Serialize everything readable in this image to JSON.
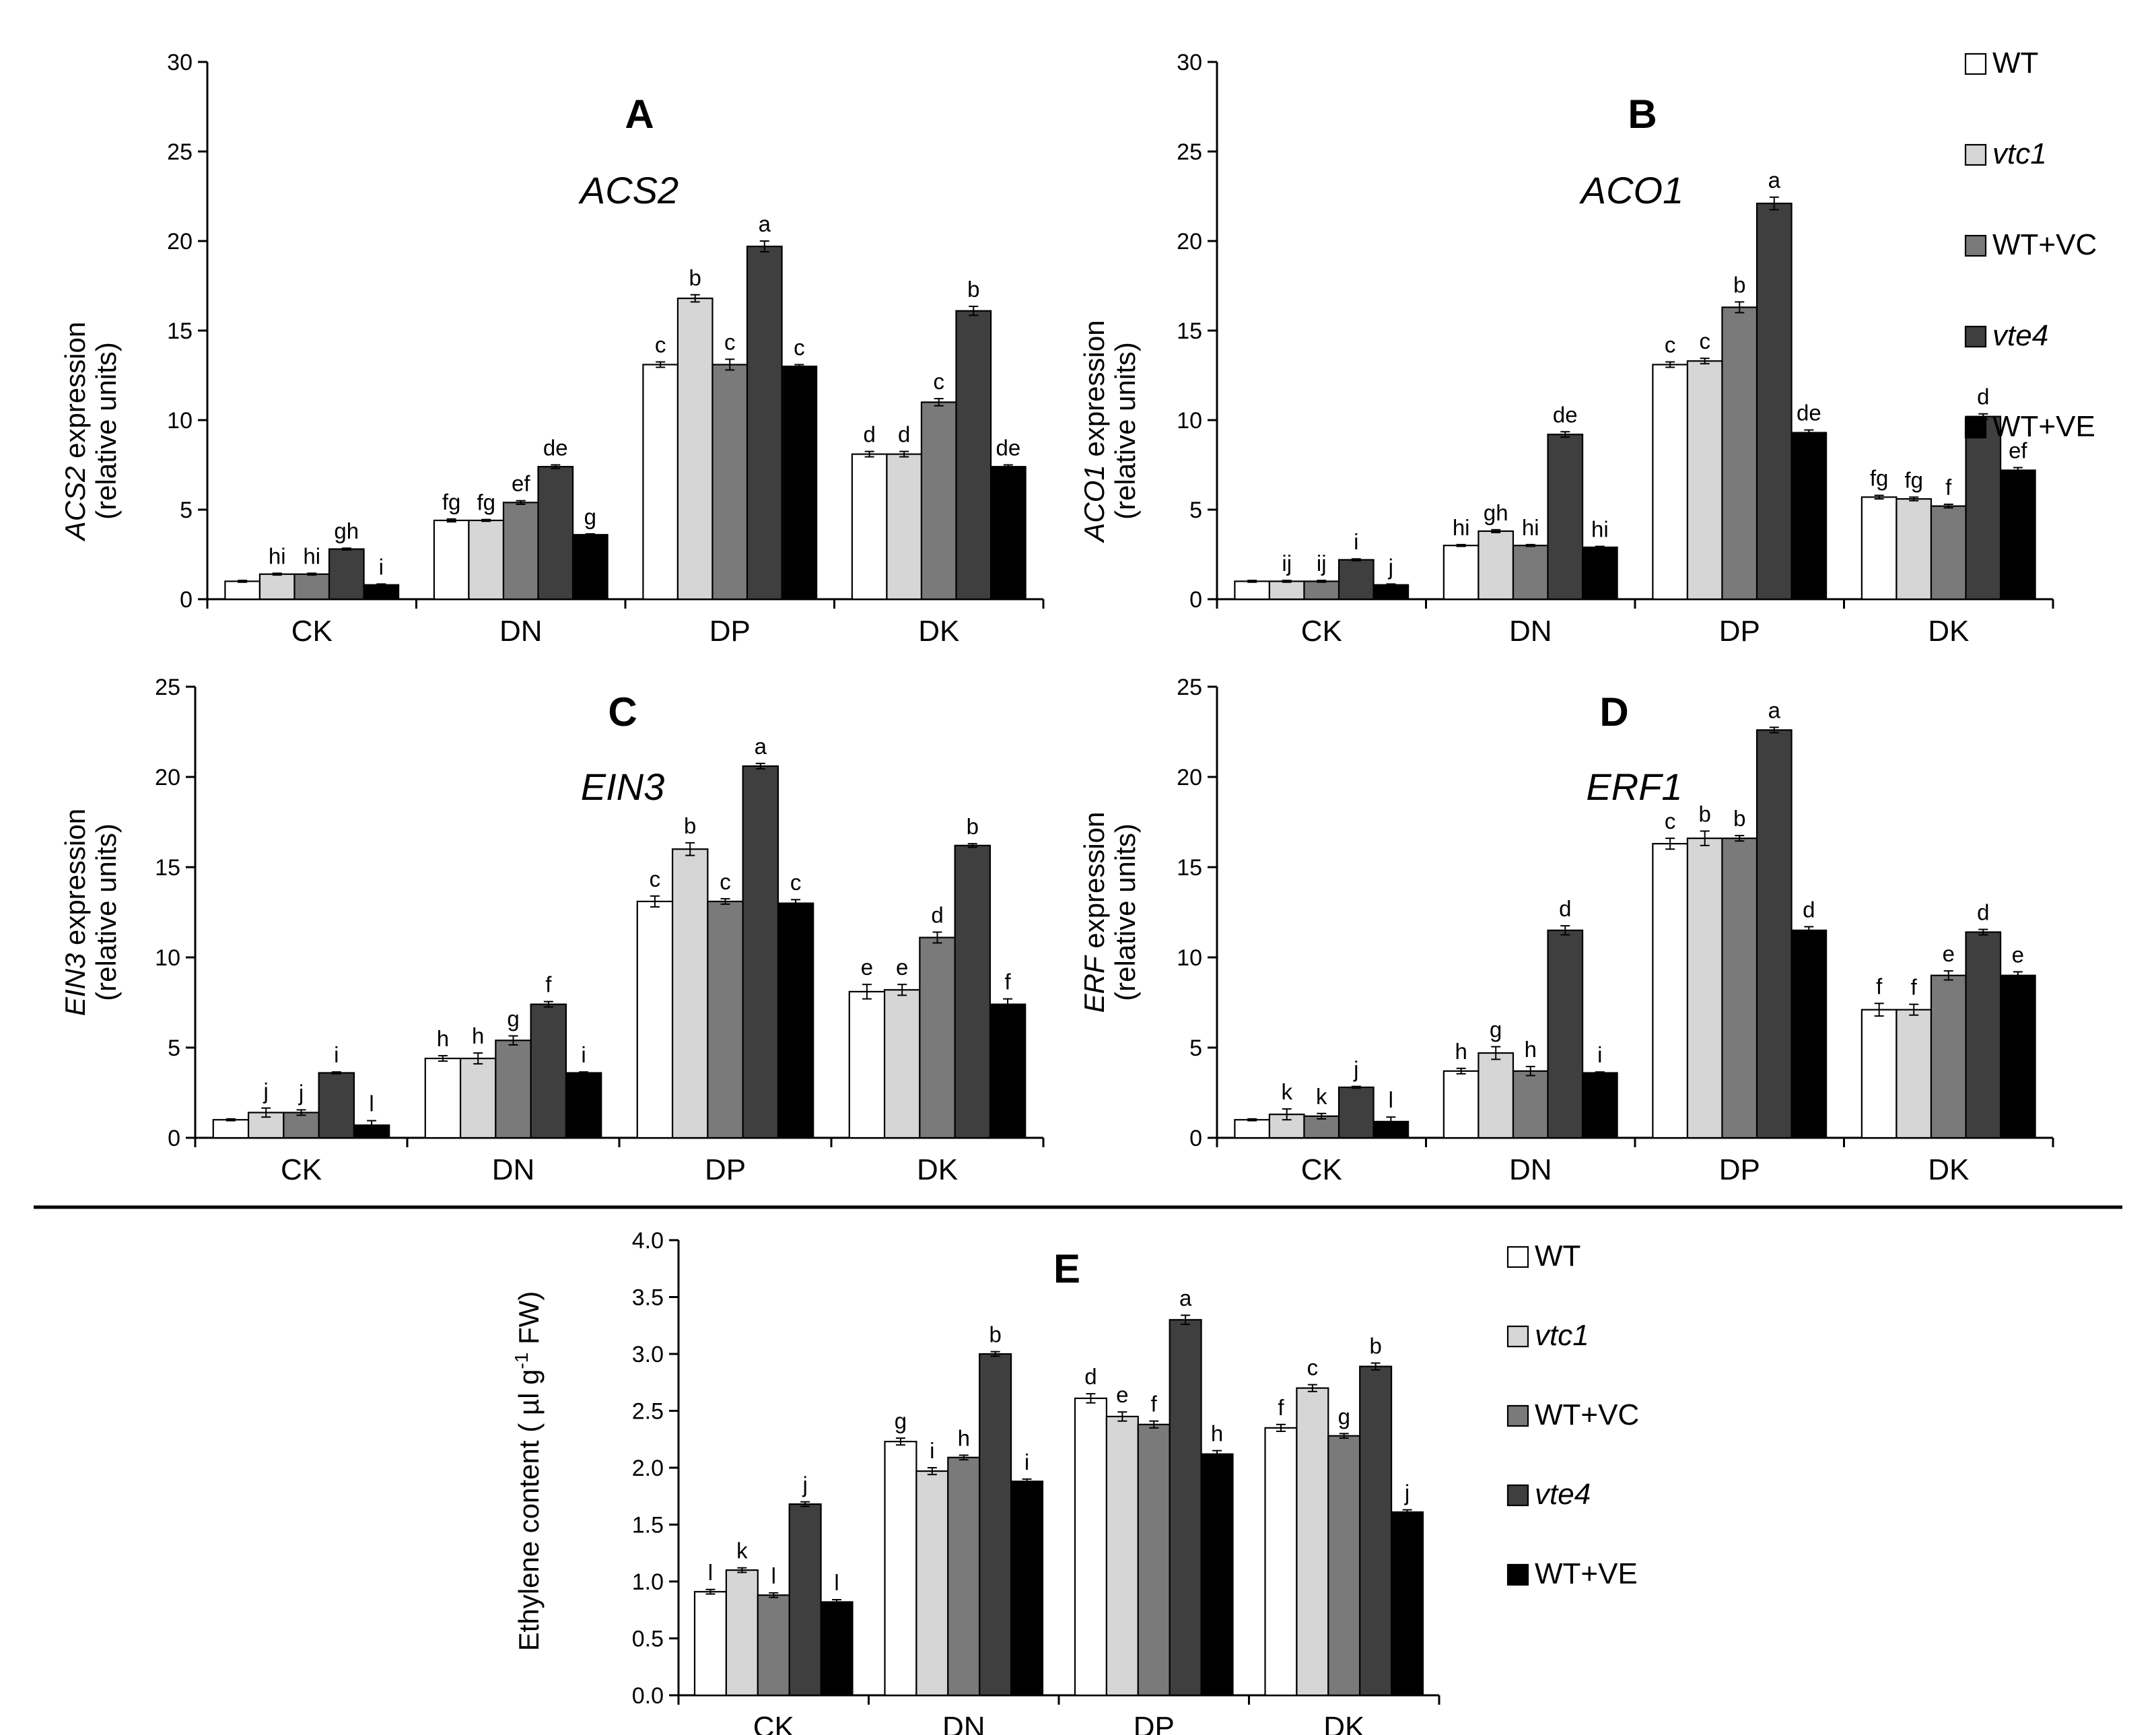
{
  "figure": {
    "legend": [
      {
        "label": "WT",
        "color": "#ffffff",
        "italic": false
      },
      {
        "label": "vtc1",
        "color": "#d6d6d6",
        "italic": true
      },
      {
        "label": "WT+VC",
        "color": "#7a7a7a",
        "italic": false
      },
      {
        "label": "vte4",
        "color": "#3f3f3f",
        "italic": true
      },
      {
        "label": "WT+VE",
        "color": "#000000",
        "italic": false
      }
    ]
  },
  "chart_data": [
    {
      "id": "A",
      "type": "bar",
      "panel_label": "A",
      "gene_label": "ACS2",
      "ylabel_italic": "ACS2",
      "ylabel_rest": " expression",
      "ylabel_line2": "(relative units)",
      "ylim": [
        0,
        30
      ],
      "yticks": [
        "0",
        "5",
        "10",
        "15",
        "20",
        "25",
        "30"
      ],
      "ytick_values": [
        0,
        5,
        10,
        15,
        20,
        25,
        30
      ],
      "categories": [
        "CK",
        "DN",
        "DP",
        "DK"
      ],
      "series": [
        {
          "name": "WT",
          "values": [
            1.0,
            4.4,
            13.1,
            8.1
          ],
          "errors": [
            0.05,
            0.08,
            0.15,
            0.15
          ],
          "letters": [
            "",
            "fg",
            "c",
            "d"
          ]
        },
        {
          "name": "vtc1",
          "values": [
            1.4,
            4.4,
            16.8,
            8.1
          ],
          "errors": [
            0.05,
            0.05,
            0.2,
            0.15
          ],
          "letters": [
            "hi",
            "fg",
            "b",
            "d"
          ]
        },
        {
          "name": "WT+VC",
          "values": [
            1.4,
            5.4,
            13.1,
            11.0
          ],
          "errors": [
            0.05,
            0.1,
            0.3,
            0.2
          ],
          "letters": [
            "hi",
            "ef",
            "c",
            "c"
          ]
        },
        {
          "name": "vte4",
          "values": [
            2.8,
            7.4,
            19.7,
            16.1
          ],
          "errors": [
            0.05,
            0.1,
            0.3,
            0.25
          ],
          "letters": [
            "gh",
            "de",
            "a",
            "b"
          ]
        },
        {
          "name": "WT+VE",
          "values": [
            0.8,
            3.6,
            13.0,
            7.4
          ],
          "errors": [
            0.05,
            0.05,
            0.1,
            0.1
          ],
          "letters": [
            "i",
            "g",
            "c",
            "de"
          ]
        }
      ]
    },
    {
      "id": "B",
      "type": "bar",
      "panel_label": "B",
      "gene_label": "ACO1",
      "ylabel_italic": "ACO1",
      "ylabel_rest": " expression",
      "ylabel_line2": "(relative units)",
      "ylim": [
        0,
        30
      ],
      "yticks": [
        "0",
        "5",
        "10",
        "15",
        "20",
        "25",
        "30"
      ],
      "ytick_values": [
        0,
        5,
        10,
        15,
        20,
        25,
        30
      ],
      "categories": [
        "CK",
        "DN",
        "DP",
        "DK"
      ],
      "series": [
        {
          "name": "WT",
          "values": [
            1.0,
            3.0,
            13.1,
            5.7
          ],
          "errors": [
            0.05,
            0.05,
            0.15,
            0.1
          ],
          "letters": [
            "",
            "hi",
            "c",
            "fg"
          ]
        },
        {
          "name": "vtc1",
          "values": [
            1.0,
            3.8,
            13.3,
            5.6
          ],
          "errors": [
            0.05,
            0.08,
            0.15,
            0.1
          ],
          "letters": [
            "ij",
            "gh",
            "c",
            "fg"
          ]
        },
        {
          "name": "WT+VC",
          "values": [
            1.0,
            3.0,
            16.3,
            5.2
          ],
          "errors": [
            0.05,
            0.05,
            0.3,
            0.1
          ],
          "letters": [
            "ij",
            "hi",
            "b",
            "f"
          ]
        },
        {
          "name": "vte4",
          "values": [
            2.2,
            9.2,
            22.1,
            10.2
          ],
          "errors": [
            0.05,
            0.15,
            0.35,
            0.15
          ],
          "letters": [
            "i",
            "de",
            "a",
            "d"
          ]
        },
        {
          "name": "WT+VE",
          "values": [
            0.8,
            2.9,
            9.3,
            7.2
          ],
          "errors": [
            0.05,
            0.05,
            0.15,
            0.15
          ],
          "letters": [
            "j",
            "hi",
            "de",
            "ef"
          ]
        }
      ]
    },
    {
      "id": "C",
      "type": "bar",
      "panel_label": "C",
      "gene_label": "EIN3",
      "ylabel_italic": "EIN3",
      "ylabel_rest": " expression",
      "ylabel_line2": "(relative units)",
      "ylim": [
        0,
        25
      ],
      "yticks": [
        "0",
        "5",
        "10",
        "15",
        "20",
        "25"
      ],
      "ytick_values": [
        0,
        5,
        10,
        15,
        20,
        25
      ],
      "categories": [
        "CK",
        "DN",
        "DP",
        "DK"
      ],
      "series": [
        {
          "name": "WT",
          "values": [
            1.0,
            4.4,
            13.1,
            8.1
          ],
          "errors": [
            0.05,
            0.15,
            0.3,
            0.4
          ],
          "letters": [
            "",
            "h",
            "c",
            "e"
          ]
        },
        {
          "name": "vtc1",
          "values": [
            1.4,
            4.4,
            16.0,
            8.2
          ],
          "errors": [
            0.25,
            0.3,
            0.35,
            0.3
          ],
          "letters": [
            "j",
            "h",
            "b",
            "e"
          ]
        },
        {
          "name": "WT+VC",
          "values": [
            1.4,
            5.4,
            13.1,
            11.1
          ],
          "errors": [
            0.15,
            0.25,
            0.15,
            0.3
          ],
          "letters": [
            "j",
            "g",
            "c",
            "d"
          ]
        },
        {
          "name": "vte4",
          "values": [
            3.6,
            7.4,
            20.6,
            16.2
          ],
          "errors": [
            0.05,
            0.15,
            0.15,
            0.1
          ],
          "letters": [
            "i",
            "f",
            "a",
            "b"
          ]
        },
        {
          "name": "WT+VE",
          "values": [
            0.7,
            3.6,
            13.0,
            7.4
          ],
          "errors": [
            0.25,
            0.05,
            0.2,
            0.3
          ],
          "letters": [
            "l",
            "i",
            "c",
            "f"
          ]
        }
      ]
    },
    {
      "id": "D",
      "type": "bar",
      "panel_label": "D",
      "gene_label": "ERF1",
      "ylabel_italic": "ERF",
      "ylabel_rest": " expression",
      "ylabel_line2": "(relative units)",
      "ylim": [
        0,
        25
      ],
      "yticks": [
        "0",
        "5",
        "10",
        "15",
        "20",
        "25"
      ],
      "ytick_values": [
        0,
        5,
        10,
        15,
        20,
        25
      ],
      "categories": [
        "CK",
        "DN",
        "DP",
        "DK"
      ],
      "series": [
        {
          "name": "WT",
          "values": [
            1.0,
            3.7,
            16.3,
            7.1
          ],
          "errors": [
            0.05,
            0.15,
            0.3,
            0.35
          ],
          "letters": [
            "",
            "h",
            "c",
            "f"
          ]
        },
        {
          "name": "vtc1",
          "values": [
            1.3,
            4.7,
            16.6,
            7.1
          ],
          "errors": [
            0.3,
            0.35,
            0.4,
            0.3
          ],
          "letters": [
            "k",
            "g",
            "b",
            "f"
          ]
        },
        {
          "name": "WT+VC",
          "values": [
            1.2,
            3.7,
            16.6,
            9.0
          ],
          "errors": [
            0.15,
            0.25,
            0.15,
            0.25
          ],
          "letters": [
            "k",
            "h",
            "b",
            "e"
          ]
        },
        {
          "name": "vte4",
          "values": [
            2.8,
            11.5,
            22.6,
            11.4
          ],
          "errors": [
            0.05,
            0.25,
            0.15,
            0.15
          ],
          "letters": [
            "j",
            "d",
            "a",
            "d"
          ]
        },
        {
          "name": "WT+VE",
          "values": [
            0.9,
            3.6,
            11.5,
            9.0
          ],
          "errors": [
            0.25,
            0.05,
            0.2,
            0.2
          ],
          "letters": [
            "l",
            "i",
            "d",
            "e"
          ]
        }
      ]
    },
    {
      "id": "E",
      "type": "bar",
      "panel_label": "E",
      "gene_label": "",
      "ylabel_italic": "",
      "ylabel_rest": "Ethylene content ( µl g",
      "ylabel_sup": "-1",
      "ylabel_end": " FW)",
      "ylabel_line2": "",
      "ylim": [
        0,
        4.0
      ],
      "yticks": [
        "0.0",
        "0.5",
        "1.0",
        "1.5",
        "2.0",
        "2.5",
        "3.0",
        "3.5",
        "4.0"
      ],
      "ytick_values": [
        0,
        0.5,
        1.0,
        1.5,
        2.0,
        2.5,
        3.0,
        3.5,
        4.0
      ],
      "categories": [
        "CK",
        "DN",
        "DP",
        "DK"
      ],
      "series": [
        {
          "name": "WT",
          "values": [
            0.91,
            2.23,
            2.61,
            2.35
          ],
          "errors": [
            0.02,
            0.03,
            0.04,
            0.03
          ],
          "letters": [
            "l",
            "g",
            "d",
            "f"
          ]
        },
        {
          "name": "vtc1",
          "values": [
            1.1,
            1.97,
            2.45,
            2.7
          ],
          "errors": [
            0.02,
            0.03,
            0.04,
            0.03
          ],
          "letters": [
            "k",
            "i",
            "e",
            "c"
          ]
        },
        {
          "name": "WT+VC",
          "values": [
            0.88,
            2.09,
            2.38,
            2.28
          ],
          "errors": [
            0.02,
            0.02,
            0.03,
            0.02
          ],
          "letters": [
            "l",
            "h",
            "f",
            "g"
          ]
        },
        {
          "name": "vte4",
          "values": [
            1.68,
            3.0,
            3.3,
            2.89
          ],
          "errors": [
            0.02,
            0.02,
            0.04,
            0.03
          ],
          "letters": [
            "j",
            "b",
            "a",
            "b"
          ]
        },
        {
          "name": "WT+VE",
          "values": [
            0.82,
            1.88,
            2.12,
            1.61
          ],
          "errors": [
            0.02,
            0.02,
            0.03,
            0.02
          ],
          "letters": [
            "l",
            "i",
            "h",
            "j"
          ]
        }
      ]
    }
  ]
}
